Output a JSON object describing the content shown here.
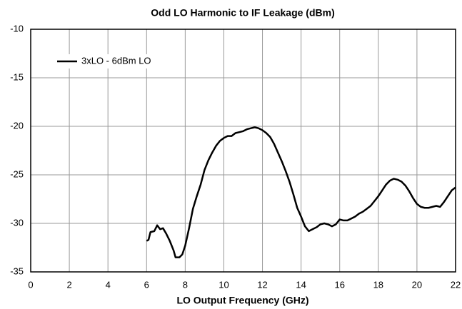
{
  "chart_data": {
    "type": "line",
    "title": "Odd LO Harmonic to IF Leakage (dBm)",
    "x_label": "LO Output Frequency (GHz)",
    "x": [
      6.0,
      6.1,
      6.2,
      6.4,
      6.55,
      6.7,
      6.85,
      7.0,
      7.2,
      7.4,
      7.5,
      7.7,
      7.85,
      8.0,
      8.2,
      8.4,
      8.6,
      8.8,
      9.0,
      9.2,
      9.4,
      9.6,
      9.8,
      10.0,
      10.2,
      10.4,
      10.6,
      10.8,
      11.0,
      11.2,
      11.4,
      11.6,
      11.8,
      12.0,
      12.2,
      12.4,
      12.6,
      12.8,
      13.0,
      13.2,
      13.4,
      13.6,
      13.8,
      14.0,
      14.2,
      14.4,
      14.6,
      14.8,
      15.0,
      15.2,
      15.4,
      15.6,
      15.8,
      16.0,
      16.2,
      16.4,
      16.6,
      16.8,
      17.0,
      17.2,
      17.4,
      17.6,
      17.8,
      18.0,
      18.2,
      18.4,
      18.6,
      18.8,
      19.0,
      19.2,
      19.4,
      19.6,
      19.8,
      20.0,
      20.2,
      20.4,
      20.6,
      20.8,
      21.0,
      21.2,
      21.4,
      21.6,
      21.8,
      22.0
    ],
    "series": [
      {
        "name": "3xLO - 6dBm LO",
        "color": "#000000",
        "values": [
          -31.8,
          -31.7,
          -30.9,
          -30.8,
          -30.2,
          -30.6,
          -30.5,
          -31.0,
          -31.8,
          -32.8,
          -33.5,
          -33.5,
          -33.2,
          -32.3,
          -30.5,
          -28.5,
          -27.2,
          -26.0,
          -24.5,
          -23.5,
          -22.7,
          -22.0,
          -21.5,
          -21.2,
          -21.0,
          -21.0,
          -20.7,
          -20.6,
          -20.5,
          -20.3,
          -20.2,
          -20.1,
          -20.2,
          -20.4,
          -20.7,
          -21.1,
          -21.8,
          -22.7,
          -23.6,
          -24.6,
          -25.7,
          -27.0,
          -28.4,
          -29.3,
          -30.3,
          -30.8,
          -30.6,
          -30.4,
          -30.1,
          -30.0,
          -30.1,
          -30.3,
          -30.1,
          -29.6,
          -29.7,
          -29.7,
          -29.5,
          -29.3,
          -29.0,
          -28.8,
          -28.5,
          -28.2,
          -27.7,
          -27.2,
          -26.6,
          -26.0,
          -25.6,
          -25.4,
          -25.5,
          -25.7,
          -26.1,
          -26.7,
          -27.4,
          -28.0,
          -28.3,
          -28.4,
          -28.4,
          -28.3,
          -28.2,
          -28.3,
          -27.8,
          -27.2,
          -26.6,
          -26.3
        ]
      }
    ],
    "xlim": [
      0,
      22
    ],
    "xticks": [
      0,
      2,
      4,
      6,
      8,
      10,
      12,
      14,
      16,
      18,
      20,
      22
    ],
    "ylim": [
      -35,
      -10
    ],
    "yticks": [
      -35,
      -30,
      -25,
      -20,
      -15,
      -10
    ],
    "grid": true,
    "legend": "upper left"
  }
}
